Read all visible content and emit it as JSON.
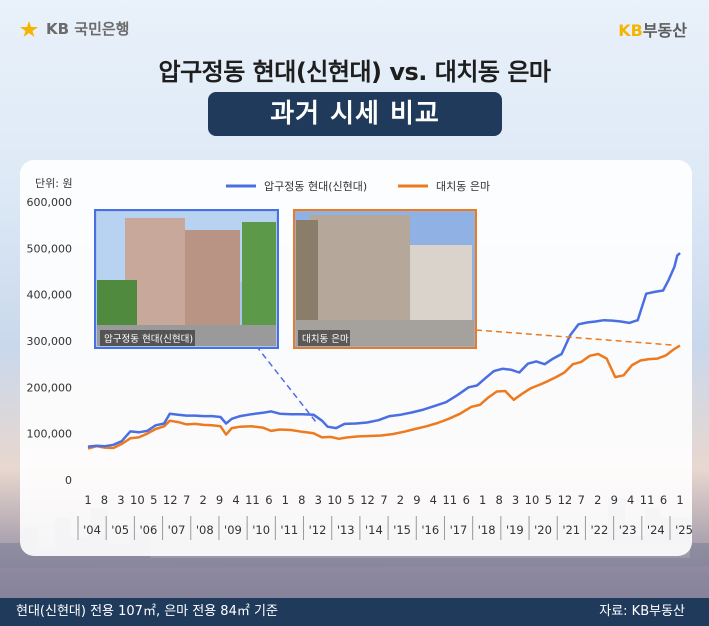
{
  "header": {
    "bank_logo_text": "KB 국민은행",
    "brand_prefix": "KB",
    "brand_suffix": "부동산",
    "title": "압구정동 현대(신현대) vs. 대치동 은마",
    "subtitle": "과거 시세 비교"
  },
  "photos": {
    "left_caption": "압구정동 현대(신현대)",
    "right_caption": "대치동 은마"
  },
  "footer": {
    "note": "현대(신현대) 전용 107㎡, 은마 전용 84㎡ 기준",
    "source": "자료: KB부동산"
  },
  "colors": {
    "series1": "#4a6fe3",
    "series2": "#ee7a1f",
    "navy": "#1f3a5b"
  },
  "chart_data": {
    "type": "line",
    "unit_label": "단위: 원",
    "ylim": [
      0,
      600000
    ],
    "y_ticks": [
      0,
      100000,
      200000,
      300000,
      400000,
      500000,
      600000
    ],
    "y_tick_labels": [
      "0",
      "100,000",
      "200,000",
      "300,000",
      "400,000",
      "500,000",
      "600,000"
    ],
    "xlim": [
      2004.0,
      2025.0
    ],
    "month_ticks": [
      {
        "x": 2004.0,
        "label": "1"
      },
      {
        "x": 2004.583,
        "label": "8"
      },
      {
        "x": 2005.167,
        "label": "3"
      },
      {
        "x": 2005.75,
        "label": "10"
      },
      {
        "x": 2006.333,
        "label": "5"
      },
      {
        "x": 2006.917,
        "label": "12"
      },
      {
        "x": 2007.5,
        "label": "7"
      },
      {
        "x": 2008.083,
        "label": "2"
      },
      {
        "x": 2008.667,
        "label": "9"
      },
      {
        "x": 2009.25,
        "label": "4"
      },
      {
        "x": 2009.833,
        "label": "11"
      },
      {
        "x": 2010.417,
        "label": "6"
      },
      {
        "x": 2011.0,
        "label": "1"
      },
      {
        "x": 2011.583,
        "label": "8"
      },
      {
        "x": 2012.167,
        "label": "3"
      },
      {
        "x": 2012.75,
        "label": "10"
      },
      {
        "x": 2013.333,
        "label": "5"
      },
      {
        "x": 2013.917,
        "label": "12"
      },
      {
        "x": 2014.5,
        "label": "7"
      },
      {
        "x": 2015.083,
        "label": "2"
      },
      {
        "x": 2015.667,
        "label": "9"
      },
      {
        "x": 2016.25,
        "label": "4"
      },
      {
        "x": 2016.833,
        "label": "11"
      },
      {
        "x": 2017.417,
        "label": "6"
      },
      {
        "x": 2018.0,
        "label": "1"
      },
      {
        "x": 2018.583,
        "label": "8"
      },
      {
        "x": 2019.167,
        "label": "3"
      },
      {
        "x": 2019.75,
        "label": "10"
      },
      {
        "x": 2020.333,
        "label": "5"
      },
      {
        "x": 2020.917,
        "label": "12"
      },
      {
        "x": 2021.5,
        "label": "7"
      },
      {
        "x": 2022.083,
        "label": "2"
      },
      {
        "x": 2022.667,
        "label": "9"
      },
      {
        "x": 2023.25,
        "label": "4"
      },
      {
        "x": 2023.833,
        "label": "11"
      },
      {
        "x": 2024.417,
        "label": "6"
      },
      {
        "x": 2025.0,
        "label": "1"
      }
    ],
    "year_labels": [
      {
        "x": 2004.0,
        "label": "'04"
      },
      {
        "x": 2005.0,
        "label": "'05"
      },
      {
        "x": 2006.0,
        "label": "'06"
      },
      {
        "x": 2007.0,
        "label": "'07"
      },
      {
        "x": 2008.0,
        "label": "'08"
      },
      {
        "x": 2009.0,
        "label": "'09"
      },
      {
        "x": 2010.0,
        "label": "'10"
      },
      {
        "x": 2011.0,
        "label": "'11"
      },
      {
        "x": 2012.0,
        "label": "'12"
      },
      {
        "x": 2013.0,
        "label": "'13"
      },
      {
        "x": 2014.0,
        "label": "'14"
      },
      {
        "x": 2015.0,
        "label": "'15"
      },
      {
        "x": 2016.0,
        "label": "'16"
      },
      {
        "x": 2017.0,
        "label": "'17"
      },
      {
        "x": 2018.0,
        "label": "'18"
      },
      {
        "x": 2019.0,
        "label": "'19"
      },
      {
        "x": 2020.0,
        "label": "'20"
      },
      {
        "x": 2021.0,
        "label": "'21"
      },
      {
        "x": 2022.0,
        "label": "'22"
      },
      {
        "x": 2023.0,
        "label": "'23"
      },
      {
        "x": 2024.0,
        "label": "'24"
      },
      {
        "x": 2025.0,
        "label": "'25"
      }
    ],
    "legend_position": "top-center",
    "grid": false,
    "series": [
      {
        "name": "압구정동 현대(신현대)",
        "color": "#4a6fe3",
        "points": [
          [
            2004.0,
            72000
          ],
          [
            2004.3,
            74000
          ],
          [
            2004.6,
            73000
          ],
          [
            2004.9,
            76000
          ],
          [
            2005.2,
            84000
          ],
          [
            2005.5,
            105000
          ],
          [
            2005.8,
            103000
          ],
          [
            2006.1,
            106000
          ],
          [
            2006.4,
            118000
          ],
          [
            2006.7,
            122000
          ],
          [
            2006.9,
            143000
          ],
          [
            2007.2,
            141000
          ],
          [
            2007.5,
            139000
          ],
          [
            2007.8,
            139000
          ],
          [
            2008.1,
            138000
          ],
          [
            2008.4,
            138000
          ],
          [
            2008.7,
            136000
          ],
          [
            2008.9,
            122000
          ],
          [
            2009.1,
            132000
          ],
          [
            2009.4,
            138000
          ],
          [
            2009.8,
            142000
          ],
          [
            2010.2,
            145000
          ],
          [
            2010.5,
            148000
          ],
          [
            2010.8,
            143000
          ],
          [
            2011.2,
            142000
          ],
          [
            2011.6,
            142000
          ],
          [
            2012.0,
            141000
          ],
          [
            2012.3,
            128000
          ],
          [
            2012.5,
            115000
          ],
          [
            2012.8,
            112000
          ],
          [
            2013.1,
            121000
          ],
          [
            2013.5,
            122000
          ],
          [
            2013.9,
            124000
          ],
          [
            2014.3,
            129000
          ],
          [
            2014.7,
            138000
          ],
          [
            2015.1,
            141000
          ],
          [
            2015.5,
            146000
          ],
          [
            2015.9,
            152000
          ],
          [
            2016.3,
            160000
          ],
          [
            2016.7,
            168000
          ],
          [
            2017.1,
            183000
          ],
          [
            2017.5,
            200000
          ],
          [
            2017.8,
            204000
          ],
          [
            2018.1,
            220000
          ],
          [
            2018.4,
            235000
          ],
          [
            2018.7,
            240000
          ],
          [
            2019.0,
            238000
          ],
          [
            2019.3,
            232000
          ],
          [
            2019.6,
            251000
          ],
          [
            2019.9,
            256000
          ],
          [
            2020.2,
            250000
          ],
          [
            2020.5,
            262000
          ],
          [
            2020.8,
            272000
          ],
          [
            2021.1,
            312000
          ],
          [
            2021.4,
            336000
          ],
          [
            2021.7,
            340000
          ],
          [
            2022.0,
            342000
          ],
          [
            2022.3,
            345000
          ],
          [
            2022.6,
            344000
          ],
          [
            2022.9,
            342000
          ],
          [
            2023.2,
            339000
          ],
          [
            2023.5,
            345000
          ],
          [
            2023.8,
            402000
          ],
          [
            2024.1,
            406000
          ],
          [
            2024.4,
            409000
          ],
          [
            2024.6,
            432000
          ],
          [
            2024.8,
            460000
          ],
          [
            2024.9,
            484000
          ],
          [
            2025.0,
            490000
          ]
        ]
      },
      {
        "name": "대치동 은마",
        "color": "#ee7a1f",
        "points": [
          [
            2004.0,
            68000
          ],
          [
            2004.3,
            73000
          ],
          [
            2004.6,
            70000
          ],
          [
            2004.9,
            69000
          ],
          [
            2005.2,
            78000
          ],
          [
            2005.5,
            90000
          ],
          [
            2005.8,
            92000
          ],
          [
            2006.1,
            100000
          ],
          [
            2006.4,
            110000
          ],
          [
            2006.7,
            116000
          ],
          [
            2006.9,
            128000
          ],
          [
            2007.2,
            125000
          ],
          [
            2007.5,
            120000
          ],
          [
            2007.8,
            121000
          ],
          [
            2008.1,
            119000
          ],
          [
            2008.4,
            118000
          ],
          [
            2008.7,
            116000
          ],
          [
            2008.9,
            98000
          ],
          [
            2009.1,
            112000
          ],
          [
            2009.4,
            115000
          ],
          [
            2009.8,
            116000
          ],
          [
            2010.2,
            113000
          ],
          [
            2010.5,
            106000
          ],
          [
            2010.8,
            109000
          ],
          [
            2011.2,
            108000
          ],
          [
            2011.6,
            104000
          ],
          [
            2012.0,
            101000
          ],
          [
            2012.3,
            92000
          ],
          [
            2012.6,
            93000
          ],
          [
            2012.9,
            89000
          ],
          [
            2013.2,
            92000
          ],
          [
            2013.6,
            94000
          ],
          [
            2014.0,
            95000
          ],
          [
            2014.4,
            96000
          ],
          [
            2014.8,
            99000
          ],
          [
            2015.2,
            104000
          ],
          [
            2015.6,
            110000
          ],
          [
            2016.0,
            116000
          ],
          [
            2016.4,
            123000
          ],
          [
            2016.8,
            132000
          ],
          [
            2017.2,
            143000
          ],
          [
            2017.6,
            158000
          ],
          [
            2017.9,
            162000
          ],
          [
            2018.2,
            178000
          ],
          [
            2018.5,
            191000
          ],
          [
            2018.8,
            192000
          ],
          [
            2019.1,
            173000
          ],
          [
            2019.4,
            186000
          ],
          [
            2019.7,
            198000
          ],
          [
            2020.0,
            205000
          ],
          [
            2020.3,
            213000
          ],
          [
            2020.6,
            222000
          ],
          [
            2020.9,
            232000
          ],
          [
            2021.2,
            250000
          ],
          [
            2021.5,
            255000
          ],
          [
            2021.8,
            268000
          ],
          [
            2022.1,
            272000
          ],
          [
            2022.4,
            262000
          ],
          [
            2022.7,
            222000
          ],
          [
            2023.0,
            226000
          ],
          [
            2023.3,
            248000
          ],
          [
            2023.6,
            258000
          ],
          [
            2023.9,
            261000
          ],
          [
            2024.2,
            262000
          ],
          [
            2024.5,
            269000
          ],
          [
            2024.8,
            283000
          ],
          [
            2025.0,
            290000
          ]
        ]
      }
    ]
  }
}
